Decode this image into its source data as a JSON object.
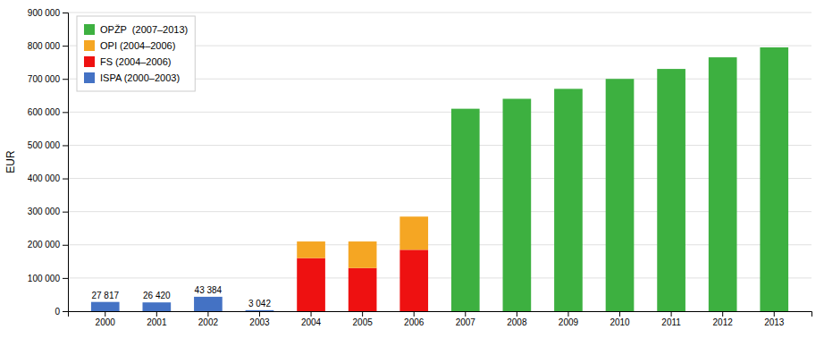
{
  "chart_data": {
    "type": "bar",
    "stacked": true,
    "ylabel": "EUR",
    "categories": [
      "2000",
      "2001",
      "2002",
      "2003",
      "2004",
      "2005",
      "2006",
      "2007",
      "2008",
      "2009",
      "2010",
      "2011",
      "2012",
      "2013"
    ],
    "series": [
      {
        "name": "ISPA (2000–2003)",
        "color": "#4472c4",
        "values": [
          27817,
          26420,
          43384,
          3042,
          0,
          0,
          0,
          0,
          0,
          0,
          0,
          0,
          0,
          0
        ],
        "data_labels": true,
        "value_labels": [
          "27 817",
          "26 420",
          "43 384",
          "3 042",
          null,
          null,
          null,
          null,
          null,
          null,
          null,
          null,
          null,
          null
        ]
      },
      {
        "name": "FS (2004–2006)",
        "color": "#ee1111",
        "values": [
          0,
          0,
          0,
          0,
          160000,
          130000,
          185000,
          0,
          0,
          0,
          0,
          0,
          0,
          0
        ]
      },
      {
        "name": "OPI (2004–2006)",
        "color": "#f5a623",
        "values": [
          0,
          0,
          0,
          0,
          50000,
          80000,
          100000,
          0,
          0,
          0,
          0,
          0,
          0,
          0
        ]
      },
      {
        "name": "OPŽP  (2007–2013)",
        "color": "#3db040",
        "values": [
          0,
          0,
          0,
          0,
          0,
          0,
          0,
          610000,
          640000,
          670000,
          700000,
          730000,
          765000,
          795000
        ]
      }
    ],
    "ylim": [
      0,
      900000
    ],
    "yticks": [
      0,
      {
        "value": 100000,
        "label": "100 000"
      },
      {
        "value": 200000,
        "label": "200 000"
      },
      {
        "value": 300000,
        "label": "300 000"
      },
      {
        "value": 400000,
        "label": "400 000"
      },
      {
        "value": 500000,
        "label": "500 000"
      },
      {
        "value": 600000,
        "label": "600 000"
      },
      {
        "value": 700000,
        "label": "700 000"
      },
      {
        "value": 800000,
        "label": "800 000"
      },
      {
        "value": 900000,
        "label": "900 000"
      }
    ],
    "grid": true,
    "legend": "upper left"
  }
}
